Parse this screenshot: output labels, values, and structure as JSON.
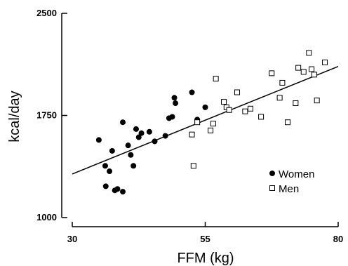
{
  "chart_data": {
    "type": "scatter",
    "xlabel": "FFM (kg)",
    "ylabel": "kcal/day",
    "xlim": [
      30,
      80
    ],
    "ylim": [
      1000,
      2500
    ],
    "xticks": [
      30,
      55,
      80
    ],
    "yticks": [
      1000,
      1750,
      2500
    ],
    "grid": false,
    "legend_position": "bottom-right",
    "series": [
      {
        "name": "Women",
        "marker": "filled-circle",
        "color": "#000000",
        "points": [
          [
            35.0,
            1570
          ],
          [
            36.2,
            1380
          ],
          [
            36.3,
            1230
          ],
          [
            37.0,
            1340
          ],
          [
            37.5,
            1490
          ],
          [
            38.0,
            1200
          ],
          [
            38.5,
            1210
          ],
          [
            39.5,
            1190
          ],
          [
            39.5,
            1700
          ],
          [
            40.5,
            1530
          ],
          [
            41.0,
            1460
          ],
          [
            41.5,
            1380
          ],
          [
            42.0,
            1650
          ],
          [
            42.5,
            1590
          ],
          [
            43.0,
            1620
          ],
          [
            44.5,
            1630
          ],
          [
            45.5,
            1560
          ],
          [
            47.5,
            1600
          ],
          [
            48.2,
            1730
          ],
          [
            48.8,
            1740
          ],
          [
            49.2,
            1880
          ],
          [
            49.4,
            1840
          ],
          [
            52.5,
            1920
          ],
          [
            53.5,
            1720
          ],
          [
            55.0,
            1810
          ]
        ]
      },
      {
        "name": "Men",
        "marker": "open-square",
        "color": "#000000",
        "points": [
          [
            52.5,
            1610
          ],
          [
            52.8,
            1380
          ],
          [
            53.5,
            1700
          ],
          [
            56.0,
            1640
          ],
          [
            56.5,
            1690
          ],
          [
            57.0,
            2020
          ],
          [
            58.5,
            1850
          ],
          [
            59.0,
            1810
          ],
          [
            59.5,
            1790
          ],
          [
            61.0,
            1920
          ],
          [
            62.5,
            1780
          ],
          [
            63.5,
            1800
          ],
          [
            65.5,
            1740
          ],
          [
            67.5,
            2060
          ],
          [
            69.0,
            1880
          ],
          [
            69.5,
            1990
          ],
          [
            70.5,
            1700
          ],
          [
            72.0,
            1840
          ],
          [
            72.5,
            2100
          ],
          [
            73.5,
            2070
          ],
          [
            74.5,
            2210
          ],
          [
            75.0,
            2090
          ],
          [
            75.5,
            2050
          ],
          [
            76.0,
            1860
          ],
          [
            77.5,
            2140
          ]
        ]
      }
    ],
    "regression_line": {
      "x": [
        30,
        80
      ],
      "y": [
        1320,
        2110
      ]
    }
  }
}
